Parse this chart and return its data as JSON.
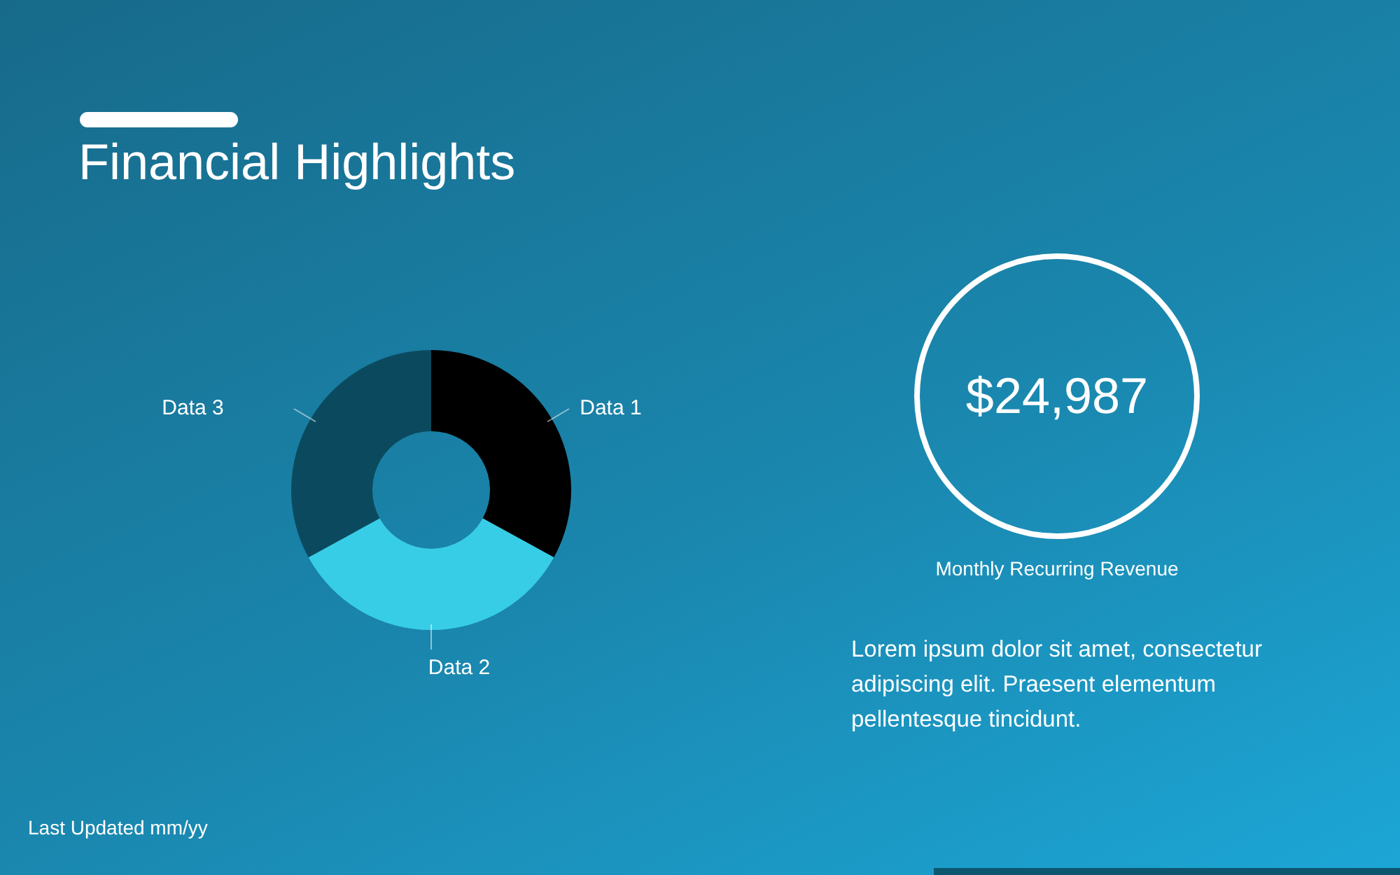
{
  "chart_data": [
    {
      "type": "donut",
      "title": "Financial Highlights",
      "categories": [
        "Data 1",
        "Data 2",
        "Data 3"
      ],
      "values": [
        33,
        34,
        33
      ],
      "colors": [
        "#000000",
        "#38cde6",
        "#0b4a5e"
      ],
      "legend": false,
      "annotations": [
        "Last Updated mm/yy"
      ]
    },
    {
      "type": "other",
      "title": "$24,987",
      "subtitle": "Monthly Recurring Revenue",
      "annotations": [
        "Lorem ipsum dolor sit amet, consectetur adipiscing elit. Praesent elementum pellentesque tincidunt."
      ]
    }
  ]
}
